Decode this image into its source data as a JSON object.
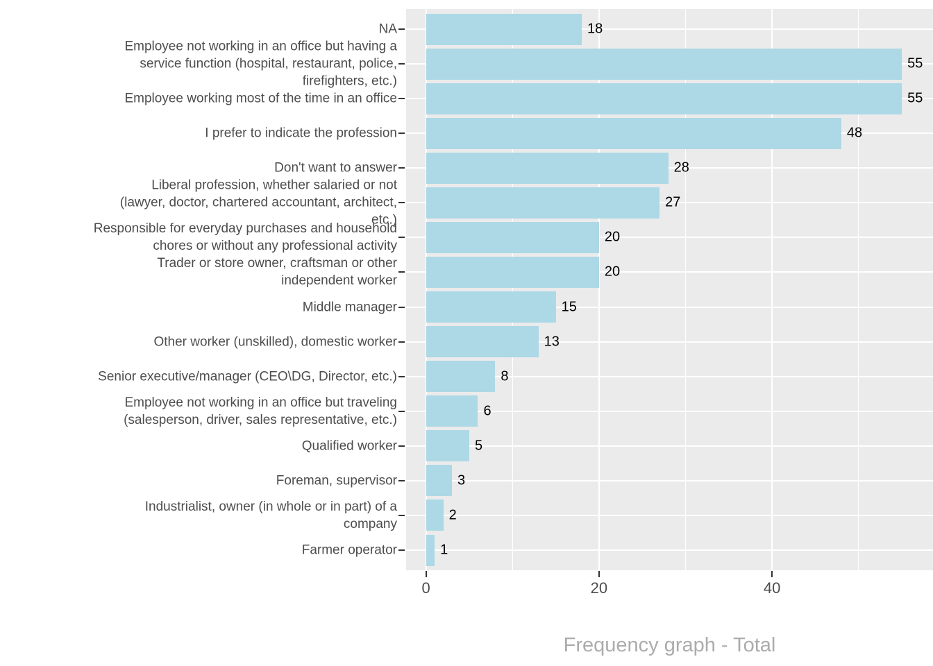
{
  "chart_data": {
    "type": "bar",
    "orientation": "horizontal",
    "title": "",
    "xlabel": "Frequency graph - Total",
    "ylabel": "",
    "categories": [
      "NA",
      "Employee not working in an office but having a\nservice function (hospital, restaurant, police,\nfirefighters, etc.)",
      "Employee working most of the time in an office",
      "I prefer to indicate the profession",
      "Don't want to answer",
      "Liberal profession, whether salaried or not\n(lawyer, doctor, chartered accountant, architect,\netc.)",
      "Responsible for everyday purchases and household\nchores or without any professional activity",
      "Trader or store owner, craftsman or other\nindependent worker",
      "Middle manager",
      "Other worker (unskilled), domestic worker",
      "Senior executive/manager (CEO\\DG, Director, etc.)",
      "Employee not working in an office but traveling\n(salesperson, driver, sales representative, etc.)",
      "Qualified worker",
      "Foreman, supervisor",
      "Industrialist, owner (in whole or in part) of a\ncompany",
      "Farmer operator"
    ],
    "values": [
      18,
      55,
      55,
      48,
      28,
      27,
      20,
      20,
      15,
      13,
      8,
      6,
      5,
      3,
      2,
      1
    ],
    "x_ticks": [
      0,
      20,
      40
    ],
    "x_tick_labels": [
      "0",
      "20",
      "40"
    ],
    "x_minor_gridlines": [
      10,
      30,
      50
    ],
    "xlim": [
      -2.3,
      58.6
    ],
    "grid": true,
    "legend": "none",
    "colors": {
      "bar": "#ADD8E6",
      "panel_bg": "#EBEBEB",
      "grid": "#FFFFFF",
      "axis_text": "#4D4D4D",
      "value_text": "#000000",
      "title": "#ACACAC",
      "tick": "#333333",
      "bg": "#FFFFFF"
    }
  }
}
